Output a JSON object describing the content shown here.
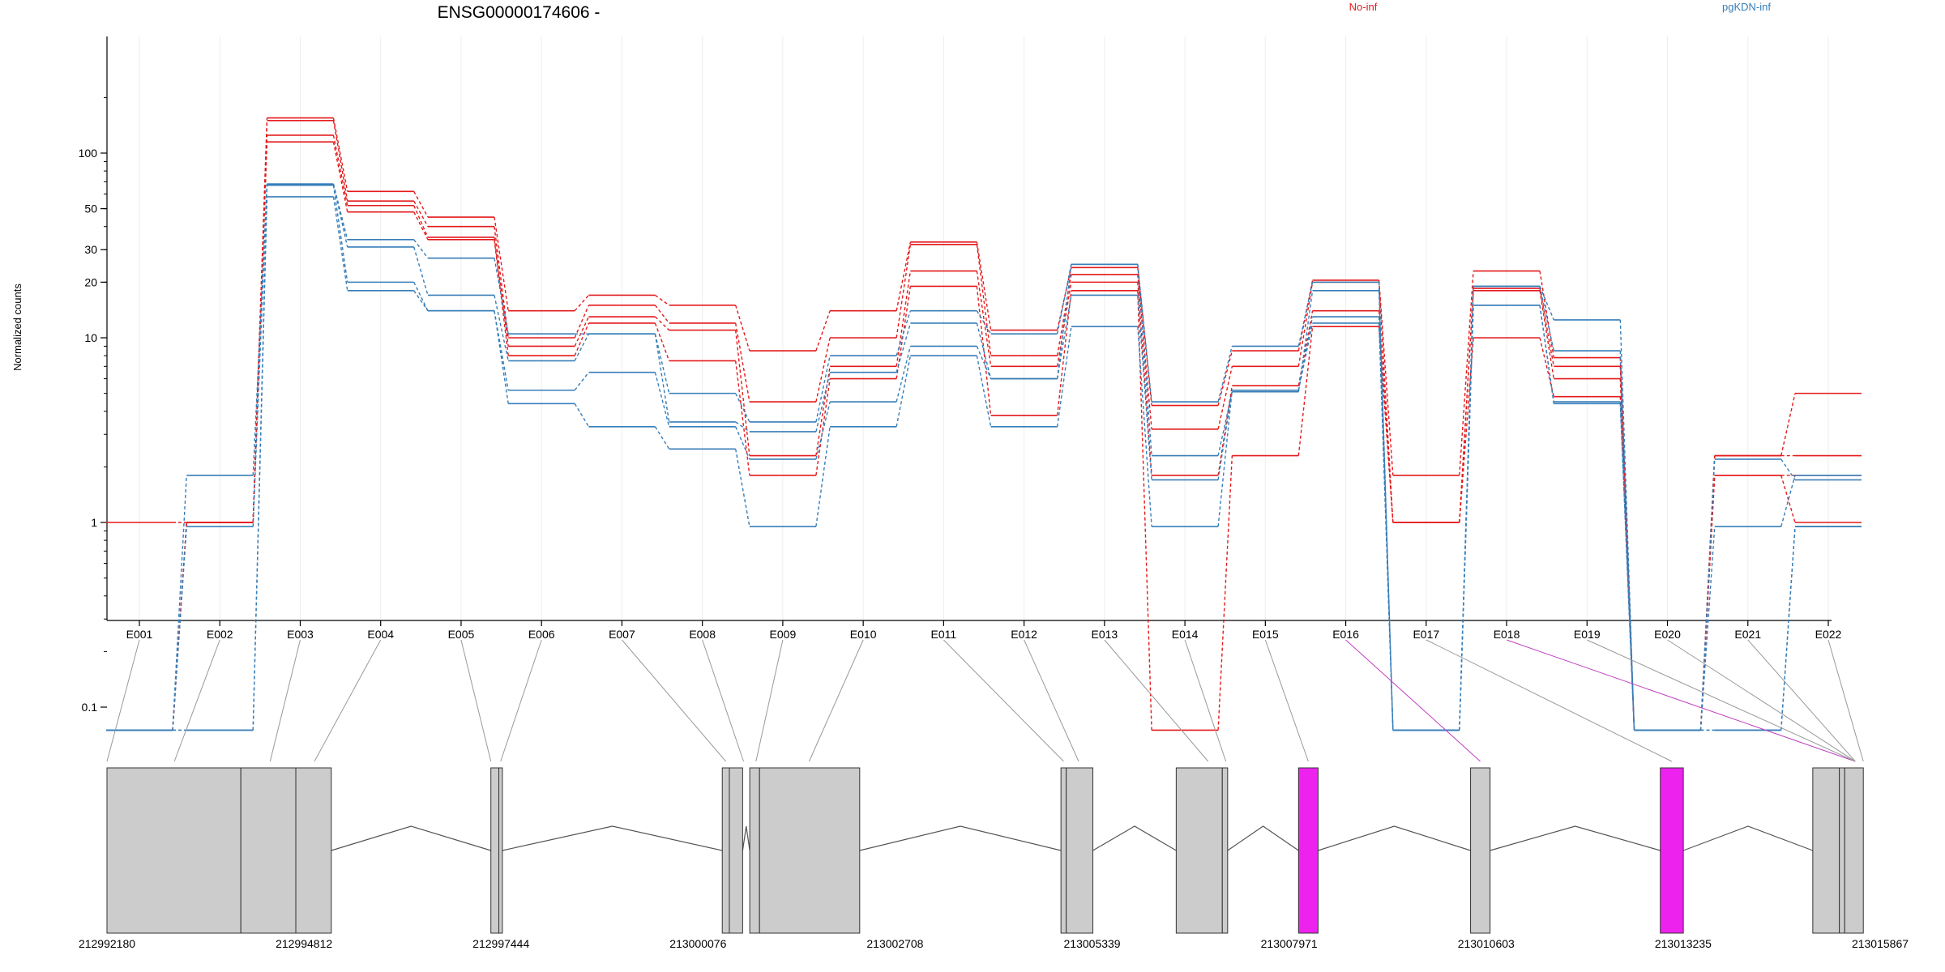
{
  "chart_data": {
    "type": "line",
    "title": "ENSG00000174606 -",
    "ylabel": "Normalized counts",
    "y_scale": "log",
    "yticks": [
      "0.1",
      "1",
      "10",
      "20",
      "30",
      "50",
      "100"
    ],
    "grid": "vertical",
    "legend": [
      {
        "label": "No-inf",
        "color": "#e41a1c"
      },
      {
        "label": "pgKDN-inf",
        "color": "#377eb8"
      }
    ],
    "categories": [
      "E001",
      "E002",
      "E003",
      "E004",
      "E005",
      "E006",
      "E007",
      "E008",
      "E009",
      "E010",
      "E011",
      "E012",
      "E013",
      "E014",
      "E015",
      "E016",
      "E017",
      "E018",
      "E019",
      "E020",
      "E021",
      "E022"
    ],
    "series": [
      {
        "group": "No-inf",
        "color": "#e41a1c",
        "values": [
          1,
          1,
          155,
          62,
          45,
          14,
          17,
          15,
          8.5,
          14,
          33,
          11,
          24,
          4.3,
          8.5,
          20.5,
          1.8,
          23,
          7.8,
          0.075,
          2.3,
          5
        ]
      },
      {
        "group": "No-inf",
        "color": "#e41a1c",
        "values": [
          0.075,
          1,
          150,
          55,
          40,
          10,
          15,
          12,
          4.5,
          10,
          32,
          8,
          22,
          3.2,
          7,
          20,
          1,
          18.5,
          7,
          0.075,
          2.3,
          2.3
        ]
      },
      {
        "group": "No-inf",
        "color": "#e41a1c",
        "values": [
          0.075,
          1,
          125,
          52,
          35,
          9,
          13,
          11,
          2.3,
          7,
          23,
          7,
          20,
          1.8,
          5.5,
          14,
          1,
          18,
          6,
          0.075,
          1.8,
          1.8
        ]
      },
      {
        "group": "No-inf",
        "color": "#e41a1c",
        "values": [
          0.075,
          1,
          115,
          48,
          34,
          8,
          12,
          7.5,
          1.8,
          6,
          19,
          3.8,
          18,
          0.075,
          2.3,
          11.5,
          1,
          10,
          4.8,
          0.075,
          1.8,
          1
        ]
      },
      {
        "group": "pgKDN-inf",
        "color": "#377eb8",
        "values": [
          0.075,
          1.8,
          68,
          34,
          27,
          10.5,
          10.5,
          5,
          3.5,
          8,
          14,
          10.5,
          25,
          4.5,
          9,
          20,
          0.075,
          19,
          12.5,
          0.075,
          2.2,
          1.7
        ]
      },
      {
        "group": "pgKDN-inf",
        "color": "#377eb8",
        "values": [
          0.075,
          0.95,
          68,
          31,
          17,
          7.5,
          10.5,
          3.5,
          3.1,
          6.5,
          12,
          6,
          25,
          2.3,
          5.1,
          18,
          0.075,
          19,
          8.5,
          0.075,
          0.95,
          1.8
        ]
      },
      {
        "group": "pgKDN-inf",
        "color": "#377eb8",
        "values": [
          0.075,
          0.075,
          67,
          20,
          14,
          5.2,
          6.5,
          3.3,
          2.2,
          4.5,
          9,
          6,
          17,
          1.7,
          5.2,
          13,
          0.075,
          15,
          4.5,
          0.075,
          0.075,
          0.95
        ]
      },
      {
        "group": "pgKDN-inf",
        "color": "#377eb8",
        "values": [
          0.075,
          0.075,
          58,
          18,
          14,
          4.4,
          3.3,
          2.5,
          0.95,
          3.3,
          8,
          3.3,
          11.5,
          0.95,
          5.2,
          12,
          0.075,
          15,
          4.4,
          0.075,
          0.075,
          0.95
        ]
      }
    ],
    "gene_model": {
      "coordinate_labels": [
        "212992180",
        "212994812",
        "212997444",
        "213000076",
        "213002708",
        "213005339",
        "213007971",
        "213010603",
        "213013235",
        "213015867"
      ],
      "highlight_color": "#ee22ee",
      "exon_color": "#cccccc",
      "highlighted_exons": [
        "E016",
        "E018"
      ]
    }
  }
}
